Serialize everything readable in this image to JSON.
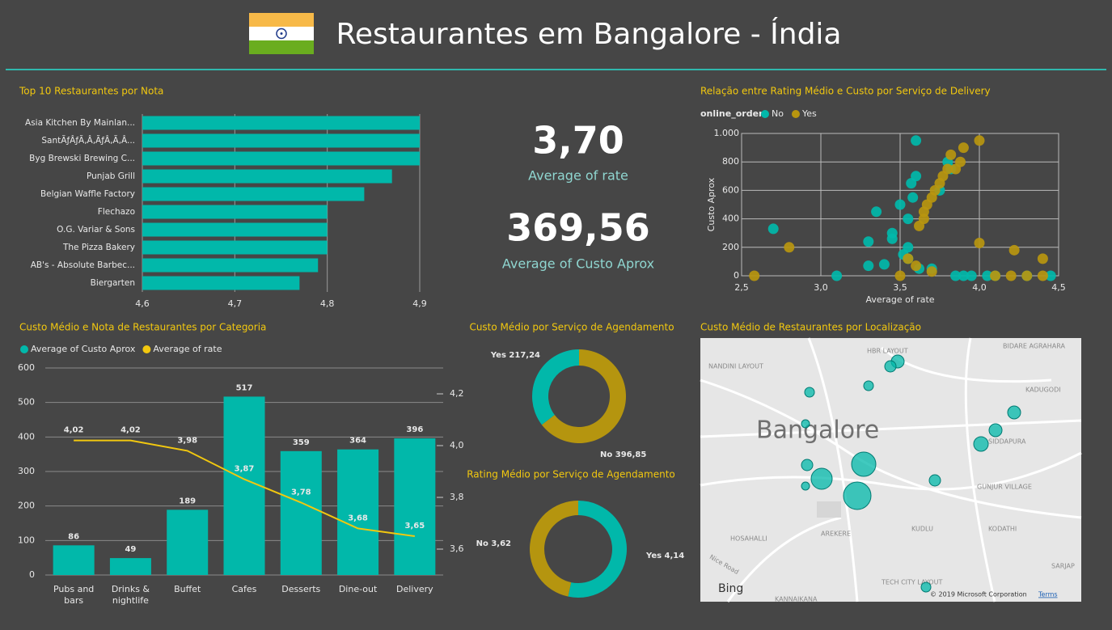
{
  "header": {
    "title": "Restaurantes em Bangalore - Índia"
  },
  "kpis": [
    {
      "value": "3,70",
      "label": "Average of rate"
    },
    {
      "value": "369,56",
      "label": "Average of Custo Aprox"
    }
  ],
  "map": {
    "title": "Custo Médio de Restaurantes por Localização",
    "places": [
      "HBR LAYOUT",
      "NANDINI LAYOUT",
      "BIDARE AGRAHARA",
      "KADUGODI",
      "Bangalore",
      "SIDDAPURA",
      "GUNJUR VILLAGE",
      "HOSAHALLI",
      "AREKERE",
      "KUDLU",
      "KODATHI",
      "Nice Road",
      "TECH CITY LAYOUT",
      "KANNAIKANA",
      "SARJAP"
    ],
    "provider": "Bing",
    "copyright": "© 2019 Microsoft Corporation",
    "terms": "Terms"
  },
  "chart_data": [
    {
      "type": "bar",
      "orientation": "horizontal",
      "title": "Top 10 Restaurantes por Nota",
      "categories": [
        "Asia Kitchen By Mainlan...",
        "SantÃƒÂƒÃ‚Â‚ÃƒÂ‚Ã‚Â...",
        "Byg Brewski Brewing C...",
        "Punjab Grill",
        "Belgian Waffle Factory",
        "Flechazo",
        "O.G. Variar & Sons",
        "The Pizza Bakery",
        "AB's - Absolute Barbec...",
        "Biergarten"
      ],
      "values": [
        4.9,
        4.9,
        4.9,
        4.87,
        4.84,
        4.8,
        4.8,
        4.8,
        4.79,
        4.77
      ],
      "color": "#01b8aa",
      "xlim": [
        4.6,
        4.9
      ],
      "xticks": [
        {
          "value": 4.6,
          "label": "4,6"
        },
        {
          "value": 4.7,
          "label": "4,7"
        },
        {
          "value": 4.8,
          "label": "4,8"
        },
        {
          "value": 4.9,
          "label": "4,9"
        }
      ],
      "grid": true
    },
    {
      "type": "scatter",
      "title": "Relação entre Rating Médio e Custo por Serviço de Delivery",
      "legend_title": "online_order",
      "xlabel": "Average of rate",
      "ylabel": "Custo Aprox",
      "xlim": [
        2.5,
        4.5
      ],
      "ylim": [
        0,
        1000
      ],
      "xticks": [
        {
          "value": 2.5,
          "label": "2,5"
        },
        {
          "value": 3,
          "label": "3,0"
        },
        {
          "value": 3.5,
          "label": "3,5"
        },
        {
          "value": 4,
          "label": "4,0"
        },
        {
          "value": 4.5,
          "label": "4,5"
        }
      ],
      "yticks": [
        0,
        200,
        400,
        600,
        800,
        {
          "value": 1000,
          "label": "1.000"
        }
      ],
      "grid": true,
      "series": [
        {
          "name": "No",
          "color": "#01b8aa",
          "x": [
            2.7,
            3.1,
            3.3,
            3.3,
            3.35,
            3.4,
            3.45,
            3.45,
            3.5,
            3.52,
            3.55,
            3.55,
            3.55,
            3.57,
            3.58,
            3.6,
            3.6,
            3.62,
            3.7,
            3.75,
            3.8,
            3.82,
            3.85,
            3.9,
            3.95,
            4.05,
            4.1,
            4.3,
            4.45
          ],
          "values": [
            330,
            0,
            240,
            70,
            450,
            80,
            300,
            260,
            500,
            150,
            400,
            200,
            120,
            650,
            550,
            700,
            950,
            50,
            50,
            600,
            800,
            750,
            0,
            0,
            0,
            0,
            0,
            0,
            0
          ]
        },
        {
          "name": "Yes",
          "color": "#b8960f",
          "x": [
            2.58,
            2.8,
            3.5,
            3.55,
            3.6,
            3.62,
            3.65,
            3.65,
            3.67,
            3.7,
            3.72,
            3.75,
            3.77,
            3.8,
            3.82,
            3.85,
            3.88,
            3.9,
            4.0,
            4.0,
            3.7,
            4.1,
            4.2,
            4.22,
            4.3,
            4.4,
            4.4
          ],
          "values": [
            0,
            200,
            0,
            120,
            70,
            350,
            400,
            450,
            500,
            550,
            600,
            650,
            700,
            750,
            850,
            750,
            800,
            900,
            950,
            230,
            30,
            0,
            0,
            180,
            0,
            120,
            0
          ]
        }
      ]
    },
    {
      "type": "combo",
      "title": "Custo Médio e Nota de Restaurantes por Categoria",
      "categories": [
        "Pubs and bars",
        "Drinks & nightlife",
        "Buffet",
        "Cafes",
        "Desserts",
        "Dine-out",
        "Delivery"
      ],
      "ylim": [
        0,
        600
      ],
      "yticks": [
        0,
        100,
        200,
        300,
        400,
        500,
        600
      ],
      "y2lim": [
        3.5,
        4.3
      ],
      "y2ticks": [
        {
          "value": 3.6,
          "label": "3,6"
        },
        {
          "value": 3.8,
          "label": "3,8"
        },
        {
          "value": 4.0,
          "label": "4,0"
        },
        {
          "value": 4.2,
          "label": "4,2"
        }
      ],
      "grid": true,
      "series": [
        {
          "name": "Average of Custo Aprox",
          "color": "#01b8aa",
          "mark": "bar",
          "values": [
            86,
            49,
            189,
            517,
            359,
            364,
            396
          ]
        },
        {
          "name": "Average of rate",
          "color": "#f2c80f",
          "mark": "line",
          "axis": "y2",
          "values": [
            4.02,
            4.02,
            3.98,
            3.87,
            3.78,
            3.68,
            3.65
          ],
          "value_labels": [
            "4,02",
            "4,02",
            "3,98",
            "3,87",
            "3,78",
            "3,68",
            "3,65"
          ]
        }
      ]
    },
    {
      "type": "donut",
      "title": "Custo Médio por Serviço de Agendamento",
      "categories": [
        "No",
        "Yes"
      ],
      "values": [
        396.85,
        217.24
      ],
      "value_labels": [
        "396,85",
        "217,24"
      ],
      "colors": [
        "#b5950f",
        "#01b8aa"
      ]
    },
    {
      "type": "donut",
      "title": "Rating Médio por Serviço de Agendamento",
      "categories": [
        "Yes",
        "No"
      ],
      "values": [
        4.14,
        3.62
      ],
      "value_labels": [
        "4,14",
        "3,62"
      ],
      "colors": [
        "#01b8aa",
        "#b5950f"
      ]
    }
  ]
}
